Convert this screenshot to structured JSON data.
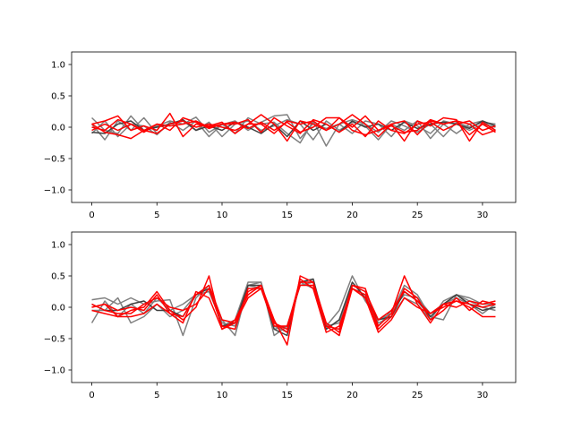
{
  "chart_data": [
    {
      "type": "line",
      "xlim": [
        -1.55,
        32.55
      ],
      "ylim": [
        -1.2,
        1.2
      ],
      "x": [
        0,
        1,
        2,
        3,
        4,
        5,
        6,
        7,
        8,
        9,
        10,
        11,
        12,
        13,
        14,
        15,
        16,
        17,
        18,
        19,
        20,
        21,
        22,
        23,
        24,
        25,
        26,
        27,
        28,
        29,
        30,
        31
      ],
      "x_ticks": [
        0,
        5,
        10,
        15,
        20,
        25,
        30
      ],
      "x_tick_labels": [
        "0",
        "5",
        "10",
        "15",
        "20",
        "25",
        "30"
      ],
      "y_ticks": [
        -1.0,
        -0.5,
        0.0,
        0.5,
        1.0
      ],
      "y_tick_labels": [
        "−1.0",
        "−0.5",
        "0.0",
        "0.5",
        "1.0"
      ],
      "grid": false,
      "series": [
        {
          "color": "#808080",
          "values": [
            0.15,
            -0.05,
            -0.1,
            0.18,
            -0.05,
            0.02,
            0.1,
            0.05,
            0.16,
            -0.08,
            0.04,
            0.1,
            -0.05,
            0.08,
            0.18,
            0.2,
            -0.18,
            0.06,
            -0.02,
            0.05,
            0.12,
            0.05,
            -0.08,
            0.1,
            0.02,
            -0.08,
            0.05,
            -0.15,
            0.08,
            0.0,
            0.08,
            0.05
          ]
        },
        {
          "color": "#808080",
          "values": [
            0.05,
            -0.2,
            0.1,
            -0.05,
            0.15,
            -0.1,
            0.05,
            0.1,
            -0.05,
            0.08,
            -0.15,
            0.05,
            0.1,
            -0.05,
            0.02,
            0.12,
            0.05,
            -0.2,
            0.1,
            -0.05,
            0.08,
            0.02,
            -0.2,
            0.05,
            -0.05,
            0.1,
            -0.18,
            0.05,
            -0.1,
            0.05,
            0.1,
            -0.05
          ]
        },
        {
          "color": "#808080",
          "values": [
            -0.1,
            0.1,
            -0.15,
            0.05,
            0.02,
            -0.12,
            0.08,
            -0.05,
            0.1,
            -0.15,
            0.05,
            -0.1,
            0.15,
            0.05,
            0.08,
            -0.1,
            -0.25,
            0.1,
            -0.3,
            0.05,
            -0.1,
            0.1,
            0.05,
            -0.15,
            0.1,
            0.02,
            -0.1,
            0.1,
            0.05,
            -0.05,
            0.05,
            0.0
          ]
        },
        {
          "color": "#404040",
          "values": [
            -0.08,
            -0.1,
            0.05,
            0.1,
            -0.05,
            0.0,
            0.05,
            0.12,
            -0.05,
            0.02,
            -0.05,
            0.08,
            0.0,
            -0.1,
            0.05,
            -0.15,
            0.1,
            -0.05,
            0.05,
            -0.08,
            0.1,
            0.0,
            0.05,
            -0.05,
            0.08,
            -0.02,
            0.05,
            0.08,
            0.05,
            -0.02,
            0.1,
            0.02
          ]
        },
        {
          "color": "#ff0000",
          "values": [
            0.05,
            0.1,
            0.18,
            -0.05,
            0.02,
            -0.05,
            0.22,
            -0.15,
            0.05,
            0.02,
            0.08,
            -0.1,
            0.05,
            0.2,
            0.05,
            -0.22,
            0.1,
            0.05,
            -0.05,
            0.15,
            0.0,
            0.18,
            -0.05,
            0.05,
            -0.22,
            0.1,
            0.02,
            0.15,
            0.12,
            -0.22,
            0.08,
            -0.05
          ]
        },
        {
          "color": "#ff0000",
          "values": [
            0.0,
            -0.05,
            0.12,
            0.05,
            -0.08,
            0.05,
            -0.05,
            0.15,
            0.08,
            -0.02,
            0.05,
            0.05,
            0.12,
            -0.08,
            0.15,
            0.02,
            -0.1,
            0.12,
            0.05,
            -0.08,
            0.05,
            -0.15,
            0.1,
            -0.05,
            -0.1,
            0.05,
            0.08,
            -0.05,
            0.05,
            0.1,
            -0.05,
            0.02
          ]
        },
        {
          "color": "#ff0000",
          "values": [
            0.05,
            -0.08,
            -0.12,
            -0.18,
            -0.05,
            0.05,
            0.02,
            0.05,
            0.1,
            0.0,
            0.05,
            0.08,
            -0.02,
            0.08,
            -0.05,
            0.08,
            -0.08,
            0.0,
            0.15,
            0.15,
            -0.05,
            -0.12,
            -0.05,
            0.02,
            -0.08,
            -0.05,
            0.12,
            0.05,
            0.1,
            0.05,
            -0.12,
            -0.05
          ]
        },
        {
          "color": "#ff0000",
          "values": [
            -0.05,
            0.05,
            -0.05,
            0.05,
            -0.05,
            -0.1,
            0.05,
            0.1,
            0.0,
            0.05,
            0.0,
            -0.05,
            0.05,
            0.05,
            -0.1,
            0.1,
            0.05,
            0.1,
            -0.05,
            0.05,
            0.2,
            0.05,
            -0.15,
            0.05,
            0.1,
            -0.12,
            0.1,
            0.05,
            0.1,
            -0.12,
            0.05,
            -0.08
          ]
        }
      ]
    },
    {
      "type": "line",
      "xlim": [
        -1.55,
        32.55
      ],
      "ylim": [
        -1.2,
        1.2
      ],
      "x": [
        0,
        1,
        2,
        3,
        4,
        5,
        6,
        7,
        8,
        9,
        10,
        11,
        12,
        13,
        14,
        15,
        16,
        17,
        18,
        19,
        20,
        21,
        22,
        23,
        24,
        25,
        26,
        27,
        28,
        29,
        30,
        31
      ],
      "x_ticks": [
        0,
        5,
        10,
        15,
        20,
        25,
        30
      ],
      "x_tick_labels": [
        "0",
        "5",
        "10",
        "15",
        "20",
        "25",
        "30"
      ],
      "y_ticks": [
        -1.0,
        -0.5,
        0.0,
        0.5,
        1.0
      ],
      "y_tick_labels": [
        "−1.0",
        "−0.5",
        "0.0",
        "0.5",
        "1.0"
      ],
      "grid": false,
      "series": [
        {
          "color": "#808080",
          "values": [
            0.12,
            0.15,
            0.05,
            0.15,
            0.05,
            0.1,
            0.12,
            -0.45,
            0.15,
            0.35,
            -0.2,
            -0.45,
            0.35,
            0.3,
            -0.3,
            -0.4,
            0.4,
            0.45,
            -0.3,
            -0.05,
            0.5,
            0.1,
            -0.2,
            -0.1,
            0.35,
            0.2,
            -0.15,
            -0.2,
            0.2,
            0.1,
            0.0,
            -0.05
          ]
        },
        {
          "color": "#808080",
          "values": [
            -0.25,
            0.1,
            -0.15,
            0.05,
            -0.1,
            0.15,
            -0.05,
            0.05,
            0.2,
            0.3,
            -0.3,
            -0.2,
            0.4,
            0.4,
            -0.45,
            -0.3,
            0.4,
            0.3,
            -0.35,
            -0.2,
            0.3,
            0.2,
            -0.3,
            -0.05,
            0.2,
            0.15,
            -0.1,
            0.05,
            0.15,
            0.05,
            -0.1,
            0.05
          ]
        },
        {
          "color": "#808080",
          "values": [
            -0.05,
            -0.05,
            0.15,
            -0.25,
            -0.15,
            0.05,
            -0.15,
            -0.05,
            0.2,
            0.25,
            -0.25,
            -0.3,
            0.35,
            0.4,
            -0.35,
            -0.3,
            0.35,
            0.4,
            -0.3,
            -0.25,
            0.35,
            0.25,
            -0.25,
            -0.15,
            0.15,
            0.05,
            -0.2,
            0.1,
            0.2,
            0.15,
            0.05,
            0.05
          ]
        },
        {
          "color": "#404040",
          "values": [
            0.05,
            -0.05,
            -0.05,
            0.05,
            0.1,
            -0.05,
            -0.05,
            -0.15,
            0.2,
            0.3,
            -0.3,
            -0.25,
            0.35,
            0.35,
            -0.35,
            -0.45,
            0.4,
            0.45,
            -0.35,
            -0.2,
            0.4,
            0.15,
            -0.2,
            -0.15,
            0.25,
            0.1,
            -0.15,
            0.05,
            0.2,
            0.05,
            -0.05,
            0.0
          ]
        },
        {
          "color": "#ff0000",
          "values": [
            0.0,
            0.05,
            -0.15,
            -0.05,
            0.0,
            0.25,
            -0.05,
            -0.2,
            0.0,
            0.5,
            -0.35,
            -0.2,
            0.2,
            0.35,
            -0.2,
            -0.6,
            0.5,
            0.4,
            -0.25,
            -0.4,
            0.35,
            0.3,
            -0.3,
            -0.1,
            0.5,
            0.05,
            -0.25,
            0.05,
            0.1,
            0.0,
            -0.15,
            -0.15
          ]
        },
        {
          "color": "#ff0000",
          "values": [
            0.05,
            -0.05,
            -0.1,
            -0.1,
            0.05,
            0.15,
            0.0,
            -0.05,
            0.05,
            0.3,
            -0.3,
            -0.35,
            0.3,
            0.3,
            -0.25,
            -0.35,
            0.45,
            0.3,
            -0.4,
            -0.3,
            0.3,
            0.2,
            -0.35,
            -0.15,
            0.3,
            0.15,
            -0.2,
            -0.05,
            0.15,
            -0.05,
            0.1,
            0.05
          ]
        },
        {
          "color": "#ff0000",
          "values": [
            -0.05,
            -0.1,
            -0.15,
            -0.15,
            -0.1,
            0.05,
            -0.1,
            -0.25,
            0.25,
            0.15,
            -0.35,
            -0.25,
            0.15,
            0.3,
            -0.3,
            -0.3,
            0.35,
            0.35,
            -0.3,
            -0.45,
            0.3,
            0.15,
            -0.4,
            -0.2,
            0.15,
            0.0,
            -0.1,
            0.05,
            0.0,
            0.1,
            0.05,
            0.1
          ]
        },
        {
          "color": "#ff0000",
          "values": [
            0.0,
            0.05,
            -0.05,
            0.0,
            -0.05,
            0.2,
            -0.1,
            -0.15,
            0.2,
            0.35,
            -0.2,
            -0.25,
            0.25,
            0.35,
            -0.25,
            -0.4,
            0.4,
            0.4,
            -0.3,
            -0.35,
            0.35,
            0.25,
            -0.2,
            -0.05,
            0.25,
            0.1,
            -0.1,
            0.0,
            0.1,
            0.05,
            0.0,
            0.05
          ]
        }
      ]
    }
  ]
}
